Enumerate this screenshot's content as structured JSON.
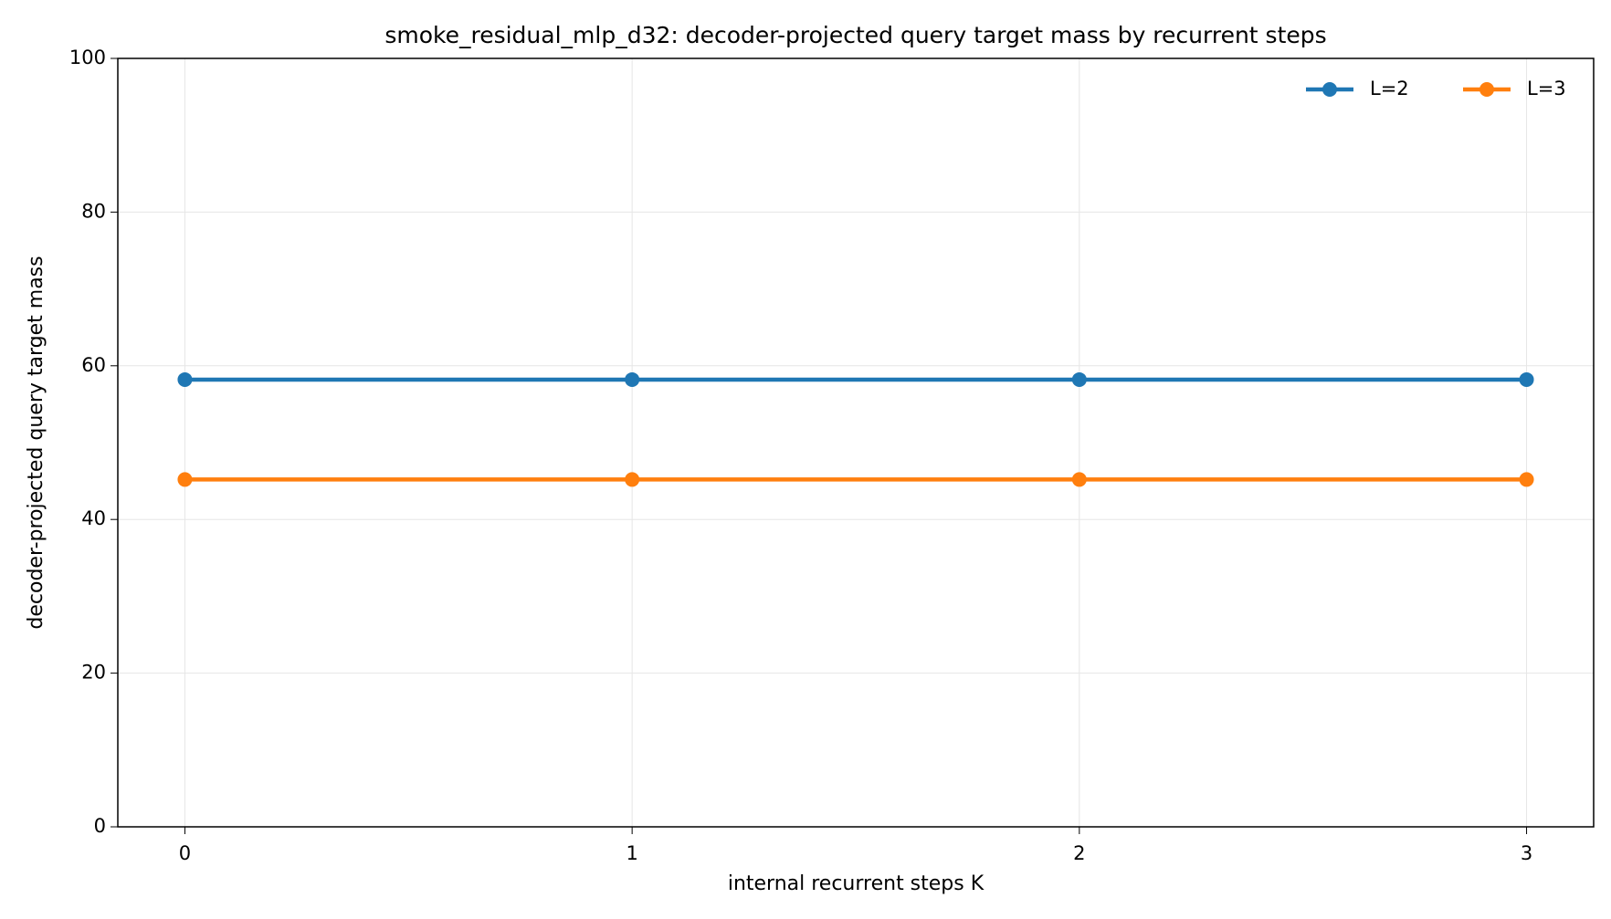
{
  "chart_data": {
    "type": "line",
    "title": "smoke_residual_mlp_d32: decoder-projected query target mass by recurrent steps",
    "x_label": "internal recurrent steps K",
    "y_label": "decoder-projected query target mass",
    "x": [
      0,
      1,
      2,
      3
    ],
    "series": [
      {
        "name": "L=2",
        "color": "#1f77b4",
        "values": [
          58.2,
          58.2,
          58.2,
          58.2
        ]
      },
      {
        "name": "L=3",
        "color": "#ff7f0e",
        "values": [
          45.2,
          45.2,
          45.2,
          45.2
        ]
      }
    ],
    "xlim": [
      -0.15,
      3.15
    ],
    "ylim": [
      0,
      100
    ],
    "xticks": [
      0,
      1,
      2,
      3
    ],
    "yticks": [
      0,
      20,
      40,
      60,
      80,
      100
    ],
    "grid": true,
    "legend": "upper right"
  }
}
